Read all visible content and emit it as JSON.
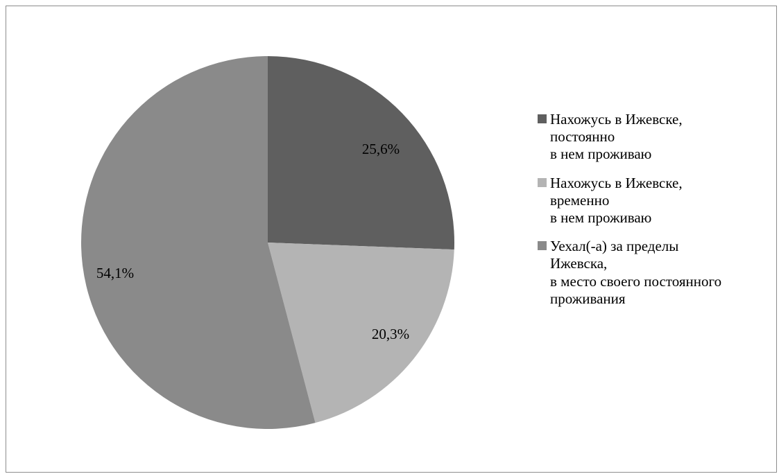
{
  "chart_data": {
    "type": "pie",
    "slices": [
      {
        "label_lines": [
          "Нахожусь в Ижевске,",
          "постоянно",
          "в нем проживаю"
        ],
        "value": 25.6,
        "value_label": "25,6%",
        "color": "#5f5f5f"
      },
      {
        "label_lines": [
          "Нахожусь в Ижевске,",
          "временно",
          "в нем проживаю"
        ],
        "value": 20.3,
        "value_label": "20,3%",
        "color": "#b4b4b4"
      },
      {
        "label_lines": [
          "Уехал(-а) за пределы",
          "Ижевска,",
          "в место своего постоянного",
          "проживания"
        ],
        "value": 54.1,
        "value_label": "54,1%",
        "color": "#8a8a8a"
      }
    ],
    "legend_position": "right",
    "start_angle": "12 o'clock",
    "direction": "clockwise"
  }
}
